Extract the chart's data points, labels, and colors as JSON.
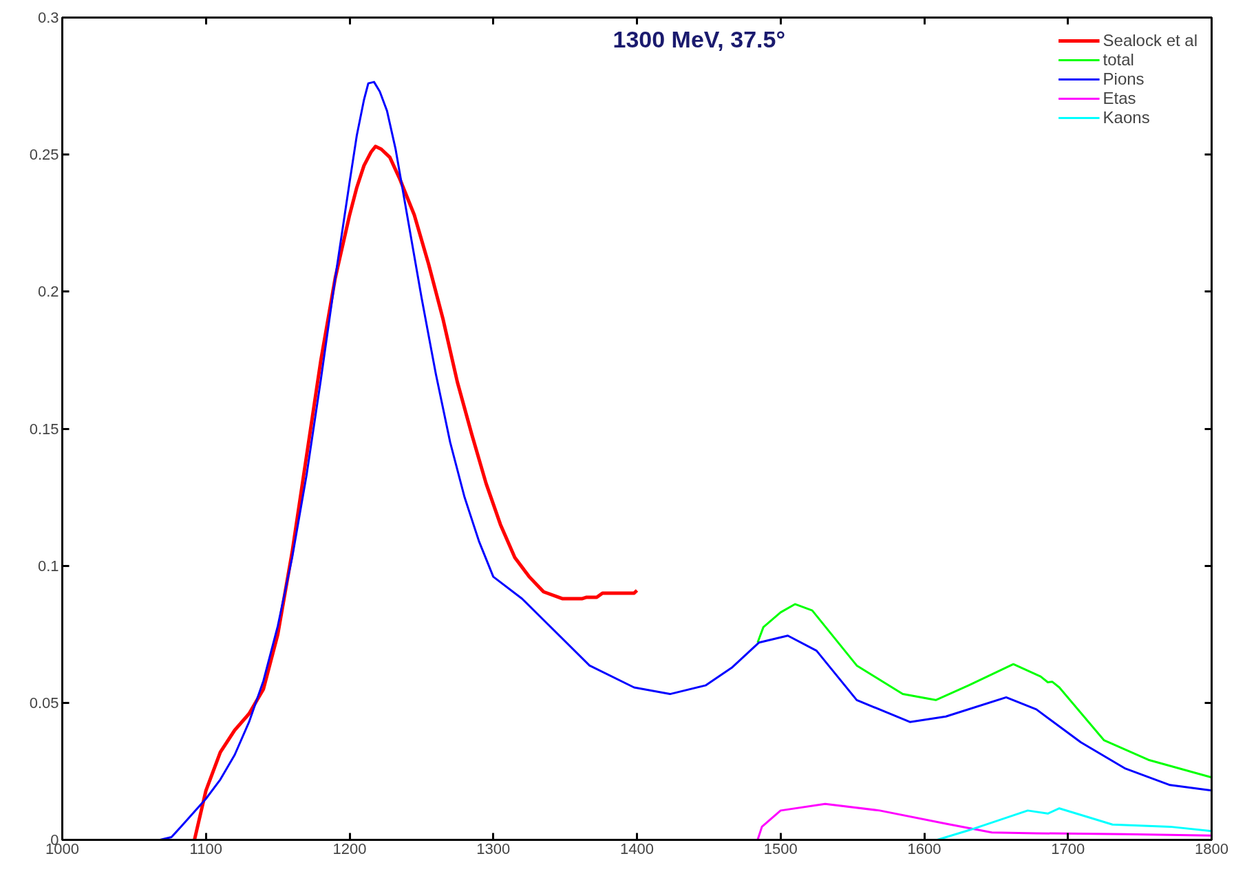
{
  "chart_data": {
    "type": "line",
    "annotations": [
      "1300 MeV, 37.5°"
    ],
    "xlim": [
      1000,
      1800
    ],
    "xticks": [
      1000,
      1100,
      1200,
      1300,
      1400,
      1500,
      1600,
      1700,
      1800
    ],
    "ylim": [
      0,
      0.3
    ],
    "yticks": [
      0,
      0.05,
      0.1,
      0.15,
      0.2,
      0.25,
      0.3
    ],
    "grid": false,
    "legend": "top right",
    "line_style": "solid",
    "marker": "none",
    "series": [
      {
        "name": "Sealock et al",
        "color": "#ff0000",
        "x": [
          1092,
          1100,
          1110,
          1120,
          1130,
          1140,
          1150,
          1160,
          1170,
          1180,
          1190,
          1200,
          1205,
          1210,
          1215,
          1218,
          1222,
          1228,
          1235,
          1245,
          1255,
          1265,
          1275,
          1285,
          1295,
          1305,
          1315,
          1325,
          1335,
          1348,
          1362,
          1365,
          1372,
          1376,
          1398,
          1400
        ],
        "values": [
          0,
          0.018,
          0.032,
          0.04,
          0.046,
          0.055,
          0.075,
          0.105,
          0.14,
          0.175,
          0.205,
          0.228,
          0.238,
          0.246,
          0.251,
          0.253,
          0.252,
          0.249,
          0.241,
          0.228,
          0.21,
          0.19,
          0.167,
          0.148,
          0.13,
          0.115,
          0.103,
          0.096,
          0.0905,
          0.088,
          0.088,
          0.0885,
          0.0885,
          0.09,
          0.09,
          0.091
        ]
      },
      {
        "name": "total",
        "color": "#00ff00",
        "x": [
          1484,
          1488,
          1500,
          1510,
          1522,
          1553,
          1585,
          1608,
          1631,
          1662,
          1681,
          1686,
          1689,
          1694,
          1725,
          1756,
          1800
        ],
        "values": [
          0.072,
          0.0776,
          0.083,
          0.086,
          0.0837,
          0.0636,
          0.0532,
          0.051,
          0.0564,
          0.0641,
          0.0596,
          0.0575,
          0.0577,
          0.0556,
          0.0364,
          0.0292,
          0.0228
        ]
      },
      {
        "name": "Pions",
        "color": "#0000ff",
        "x": [
          1068,
          1076,
          1083,
          1100,
          1110,
          1120,
          1130,
          1140,
          1150,
          1160,
          1170,
          1180,
          1190,
          1200,
          1205,
          1210,
          1213,
          1217,
          1221,
          1226,
          1232,
          1240,
          1250,
          1260,
          1270,
          1280,
          1290,
          1300,
          1320,
          1336,
          1367,
          1398,
          1423,
          1448,
          1466,
          1485,
          1505,
          1525,
          1553,
          1590,
          1615,
          1657,
          1678,
          1709,
          1740,
          1771,
          1800
        ],
        "values": [
          0,
          0.001,
          0.005,
          0.015,
          0.022,
          0.031,
          0.043,
          0.058,
          0.078,
          0.103,
          0.133,
          0.168,
          0.205,
          0.24,
          0.257,
          0.27,
          0.276,
          0.2765,
          0.273,
          0.266,
          0.252,
          0.228,
          0.198,
          0.17,
          0.145,
          0.125,
          0.109,
          0.096,
          0.088,
          0.0797,
          0.0636,
          0.0556,
          0.0532,
          0.0564,
          0.0628,
          0.072,
          0.0745,
          0.069,
          0.051,
          0.043,
          0.045,
          0.052,
          0.0476,
          0.0356,
          0.026,
          0.02,
          0.018
        ]
      },
      {
        "name": "Etas",
        "color": "#ff00ff",
        "x": [
          1484,
          1487,
          1500,
          1531,
          1569,
          1615,
          1647,
          1678,
          1740,
          1800
        ],
        "values": [
          0,
          0.0048,
          0.0107,
          0.0131,
          0.0107,
          0.0059,
          0.0027,
          0.0024,
          0.0021,
          0.0016
        ]
      },
      {
        "name": "Kaons",
        "color": "#00ffff",
        "x": [
          1609,
          1631,
          1672,
          1686,
          1694,
          1709,
          1731,
          1771,
          1800
        ],
        "values": [
          0,
          0.0035,
          0.0107,
          0.0096,
          0.0115,
          0.0091,
          0.0056,
          0.0048,
          0.0032
        ]
      }
    ]
  }
}
